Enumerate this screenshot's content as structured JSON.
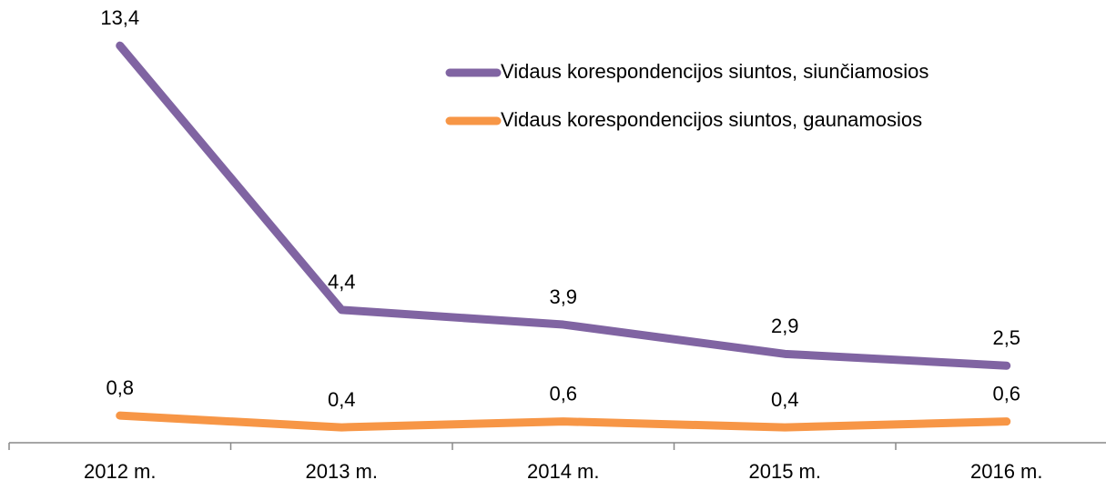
{
  "chart_data": {
    "type": "line",
    "categories": [
      "2012 m.",
      "2013 m.",
      "2014 m.",
      "2015 m.",
      "2016 m."
    ],
    "series": [
      {
        "name": "Vidaus korespondencijos siuntos, siunčiamosios",
        "color": "#8064a2",
        "values": [
          13.4,
          4.4,
          3.9,
          2.9,
          2.5
        ],
        "value_labels": [
          "13,4",
          "4,4",
          "3,9",
          "2,9",
          "2,5"
        ]
      },
      {
        "name": "Vidaus korespondencijos siuntos, gaunamosios",
        "color": "#f79646",
        "values": [
          0.8,
          0.4,
          0.6,
          0.4,
          0.6
        ],
        "value_labels": [
          "0,8",
          "0,4",
          "0,6",
          "0,4",
          "0,6"
        ]
      }
    ],
    "legend": "top-right"
  }
}
